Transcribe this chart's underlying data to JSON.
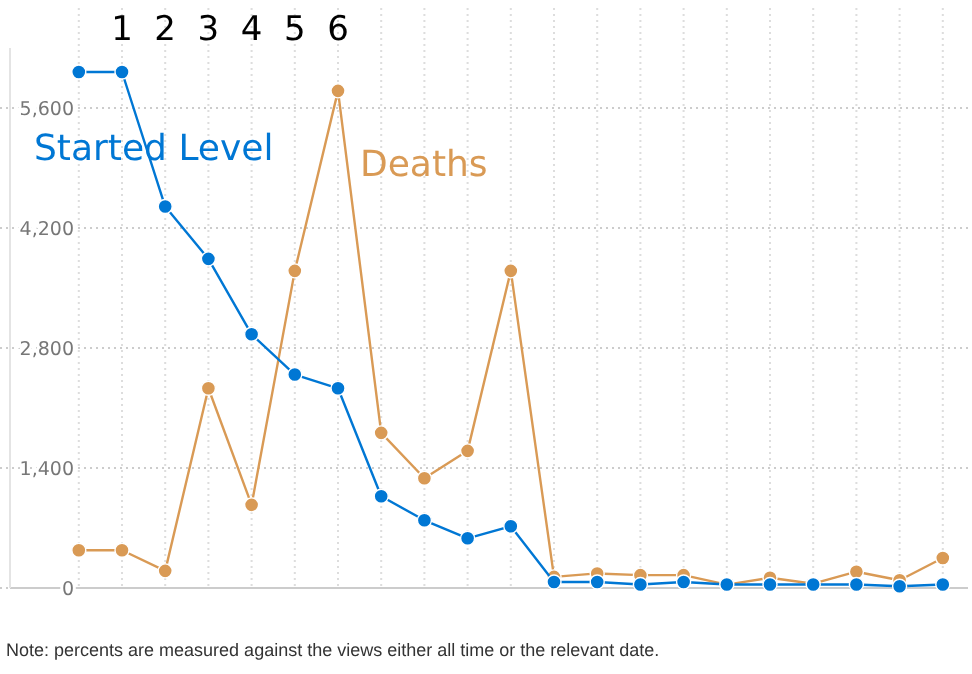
{
  "chart_data": {
    "type": "line",
    "categories": [
      null,
      null,
      null,
      null,
      null,
      null,
      null,
      null,
      null,
      null,
      null,
      null,
      null,
      null,
      null,
      null,
      null,
      null,
      null,
      null,
      null
    ],
    "series": [
      {
        "name": "Started Level",
        "color": "#0077d4",
        "values": [
          6020,
          6020,
          4450,
          3840,
          2960,
          2490,
          2330,
          1070,
          790,
          580,
          720,
          70,
          70,
          40,
          70,
          40,
          40,
          40,
          40,
          20,
          40
        ]
      },
      {
        "name": "Deaths",
        "color": "#d99a55",
        "values": [
          440,
          440,
          200,
          2330,
          970,
          3700,
          5800,
          1810,
          1280,
          1600,
          3700,
          130,
          170,
          150,
          150,
          40,
          120,
          50,
          190,
          90,
          350
        ]
      }
    ],
    "ylim": [
      0,
      6300
    ],
    "yticks": [
      0,
      {
        "value": 1400,
        "label": "1,400"
      },
      {
        "value": 2800,
        "label": "2,800"
      },
      {
        "value": 4200,
        "label": "4,200"
      },
      {
        "value": 5600,
        "label": "5,600"
      }
    ],
    "grid": true,
    "marker": "circle",
    "tick_labels": "y",
    "annotations": [
      "1",
      "2",
      "3",
      "4",
      "5",
      "6",
      "Note: percents are measured against the views either all time or the relevant date."
    ]
  }
}
